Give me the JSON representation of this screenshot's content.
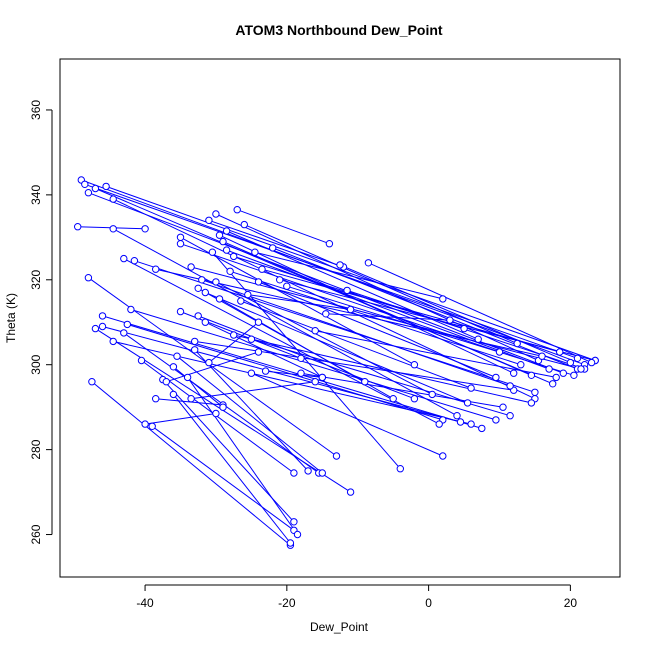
{
  "chart_data": {
    "type": "line",
    "title": "ATOM3 Northbound Dew_Point",
    "xlabel": "Dew_Point",
    "ylabel": "Theta (K)",
    "xlim": [
      -52,
      27
    ],
    "ylim": [
      250,
      372
    ],
    "x_ticks": [
      -40,
      -20,
      0,
      20
    ],
    "y_ticks": [
      260,
      280,
      300,
      320,
      340,
      360
    ],
    "grid": false,
    "legend": "none",
    "marker": "open-circle",
    "color": "#0000ff",
    "segments": [
      [
        [
          -49.5,
          332.5
        ],
        [
          -40.0,
          332.0
        ]
      ],
      [
        [
          -44.5,
          332.0
        ],
        [
          4.0,
          288.0
        ]
      ],
      [
        [
          -49.0,
          343.5
        ],
        [
          22.0,
          300.0
        ]
      ],
      [
        [
          -48.5,
          342.5
        ],
        [
          21.0,
          301.5
        ]
      ],
      [
        [
          -48.0,
          340.5
        ],
        [
          19.0,
          298.0
        ]
      ],
      [
        [
          -47.0,
          341.5
        ],
        [
          17.5,
          295.5
        ]
      ],
      [
        [
          -45.5,
          342.0
        ],
        [
          23.5,
          301.0
        ]
      ],
      [
        [
          -44.5,
          339.0
        ],
        [
          15.0,
          292.0
        ]
      ],
      [
        [
          -48.0,
          320.5
        ],
        [
          -13.0,
          278.5
        ]
      ],
      [
        [
          -47.0,
          308.5
        ],
        [
          -11.0,
          270.0
        ]
      ],
      [
        [
          -46.0,
          311.5
        ],
        [
          7.5,
          285.0
        ]
      ],
      [
        [
          -46.0,
          309.0
        ],
        [
          4.5,
          286.5
        ]
      ],
      [
        [
          -44.5,
          305.5
        ],
        [
          6.0,
          286.0
        ]
      ],
      [
        [
          -43.0,
          307.5
        ],
        [
          -15.5,
          274.5
        ]
      ],
      [
        [
          -42.5,
          309.5
        ],
        [
          2.0,
          287.0
        ]
      ],
      [
        [
          -42.0,
          313.0
        ],
        [
          9.5,
          287.0
        ]
      ],
      [
        [
          -43.0,
          325.0
        ],
        [
          1.5,
          286.0
        ]
      ],
      [
        [
          -41.5,
          324.5
        ],
        [
          15.0,
          293.5
        ]
      ],
      [
        [
          -40.5,
          301.0
        ],
        [
          -19.0,
          274.5
        ]
      ],
      [
        [
          -40.0,
          286.0
        ],
        [
          -30.0,
          288.5
        ]
      ],
      [
        [
          -39.0,
          285.5
        ],
        [
          -19.0,
          261.0
        ]
      ],
      [
        [
          -47.5,
          296.0
        ],
        [
          -19.5,
          257.5
        ]
      ],
      [
        [
          -38.5,
          292.0
        ],
        [
          -29.0,
          290.5
        ]
      ],
      [
        [
          -37.5,
          296.5
        ],
        [
          -19.0,
          263.0
        ]
      ],
      [
        [
          -37.0,
          296.0
        ],
        [
          -24.0,
          303.0
        ]
      ],
      [
        [
          -36.0,
          293.0
        ],
        [
          -19.5,
          258.0
        ]
      ],
      [
        [
          -35.5,
          302.0
        ],
        [
          -15.0,
          274.5
        ]
      ],
      [
        [
          -35.0,
          328.5
        ],
        [
          10.0,
          303.0
        ]
      ],
      [
        [
          -35.0,
          312.5
        ],
        [
          -18.0,
          301.5
        ]
      ],
      [
        [
          -34.0,
          297.0
        ],
        [
          -18.5,
          260.0
        ]
      ],
      [
        [
          -33.5,
          292.0
        ],
        [
          -16.0,
          296.0
        ]
      ],
      [
        [
          -33.0,
          305.5
        ],
        [
          12.0,
          294.0
        ]
      ],
      [
        [
          -32.5,
          311.5
        ],
        [
          -2.0,
          292.0
        ]
      ],
      [
        [
          -32.0,
          320.0
        ],
        [
          11.5,
          295.0
        ]
      ],
      [
        [
          -31.5,
          317.0
        ],
        [
          5.5,
          291.0
        ]
      ],
      [
        [
          -31.5,
          310.0
        ],
        [
          -15.0,
          297.0
        ]
      ],
      [
        [
          -31.0,
          334.0
        ],
        [
          -12.0,
          323.0
        ]
      ],
      [
        [
          -30.5,
          326.5
        ],
        [
          -4.0,
          275.5
        ]
      ],
      [
        [
          -30.0,
          335.5
        ],
        [
          15.5,
          301.0
        ]
      ],
      [
        [
          -29.5,
          330.5
        ],
        [
          12.0,
          298.0
        ]
      ],
      [
        [
          -29.0,
          329.0
        ],
        [
          14.5,
          297.5
        ]
      ],
      [
        [
          -28.5,
          331.5
        ],
        [
          7.0,
          306.0
        ]
      ],
      [
        [
          -28.5,
          327.0
        ],
        [
          17.0,
          299.0
        ]
      ],
      [
        [
          -28.0,
          322.0
        ],
        [
          13.0,
          300.0
        ]
      ],
      [
        [
          -27.5,
          325.5
        ],
        [
          5.0,
          308.5
        ]
      ],
      [
        [
          -27.0,
          336.5
        ],
        [
          -14.0,
          328.5
        ]
      ],
      [
        [
          -26.5,
          315.0
        ],
        [
          6.0,
          294.5
        ]
      ],
      [
        [
          -26.0,
          333.0
        ],
        [
          12.5,
          305.0
        ]
      ],
      [
        [
          -25.5,
          316.5
        ],
        [
          -11.0,
          313.0
        ]
      ],
      [
        [
          -25.0,
          306.0
        ],
        [
          11.5,
          288.0
        ]
      ],
      [
        [
          -25.0,
          298.0
        ],
        [
          2.0,
          278.5
        ]
      ],
      [
        [
          -24.5,
          326.5
        ],
        [
          2.0,
          315.5
        ]
      ],
      [
        [
          -24.0,
          319.5
        ],
        [
          9.5,
          297.0
        ]
      ],
      [
        [
          -23.5,
          322.5
        ],
        [
          18.5,
          303.0
        ]
      ],
      [
        [
          -23.0,
          298.5
        ],
        [
          -15.0,
          297.0
        ]
      ],
      [
        [
          -22.0,
          327.5
        ],
        [
          21.0,
          299.0
        ]
      ],
      [
        [
          -21.0,
          320.0
        ],
        [
          23.5,
          301.0
        ]
      ],
      [
        [
          -20.0,
          318.5
        ],
        [
          20.5,
          297.5
        ]
      ],
      [
        [
          -18.0,
          298.0
        ],
        [
          10.5,
          290.0
        ]
      ],
      [
        [
          -16.0,
          308.0
        ],
        [
          18.0,
          297.0
        ]
      ],
      [
        [
          -12.5,
          323.5
        ],
        [
          20.0,
          300.5
        ]
      ],
      [
        [
          -11.5,
          317.5
        ],
        [
          22.0,
          299.0
        ]
      ],
      [
        [
          -8.5,
          324.0
        ],
        [
          23.0,
          300.5
        ]
      ],
      [
        [
          -14.5,
          312.0
        ],
        [
          3.0,
          310.5
        ]
      ],
      [
        [
          -31.0,
          300.5
        ],
        [
          -24.0,
          310.0
        ]
      ],
      [
        [
          -29.5,
          315.5
        ],
        [
          -5.0,
          292.0
        ]
      ],
      [
        [
          -30.0,
          319.5
        ],
        [
          0.5,
          293.0
        ]
      ],
      [
        [
          -33.5,
          323.0
        ],
        [
          21.5,
          299.0
        ]
      ],
      [
        [
          -32.5,
          318.0
        ],
        [
          -9.0,
          296.0
        ]
      ],
      [
        [
          -29.0,
          290.0
        ],
        [
          -36.0,
          299.5
        ]
      ],
      [
        [
          -27.5,
          307.0
        ],
        [
          14.5,
          291.0
        ]
      ],
      [
        [
          -35.0,
          330.0
        ],
        [
          -2.0,
          300.0
        ]
      ],
      [
        [
          -38.5,
          322.5
        ],
        [
          16.0,
          302.0
        ]
      ],
      [
        [
          -33.0,
          303.5
        ],
        [
          -17.0,
          275.0
        ]
      ]
    ]
  }
}
